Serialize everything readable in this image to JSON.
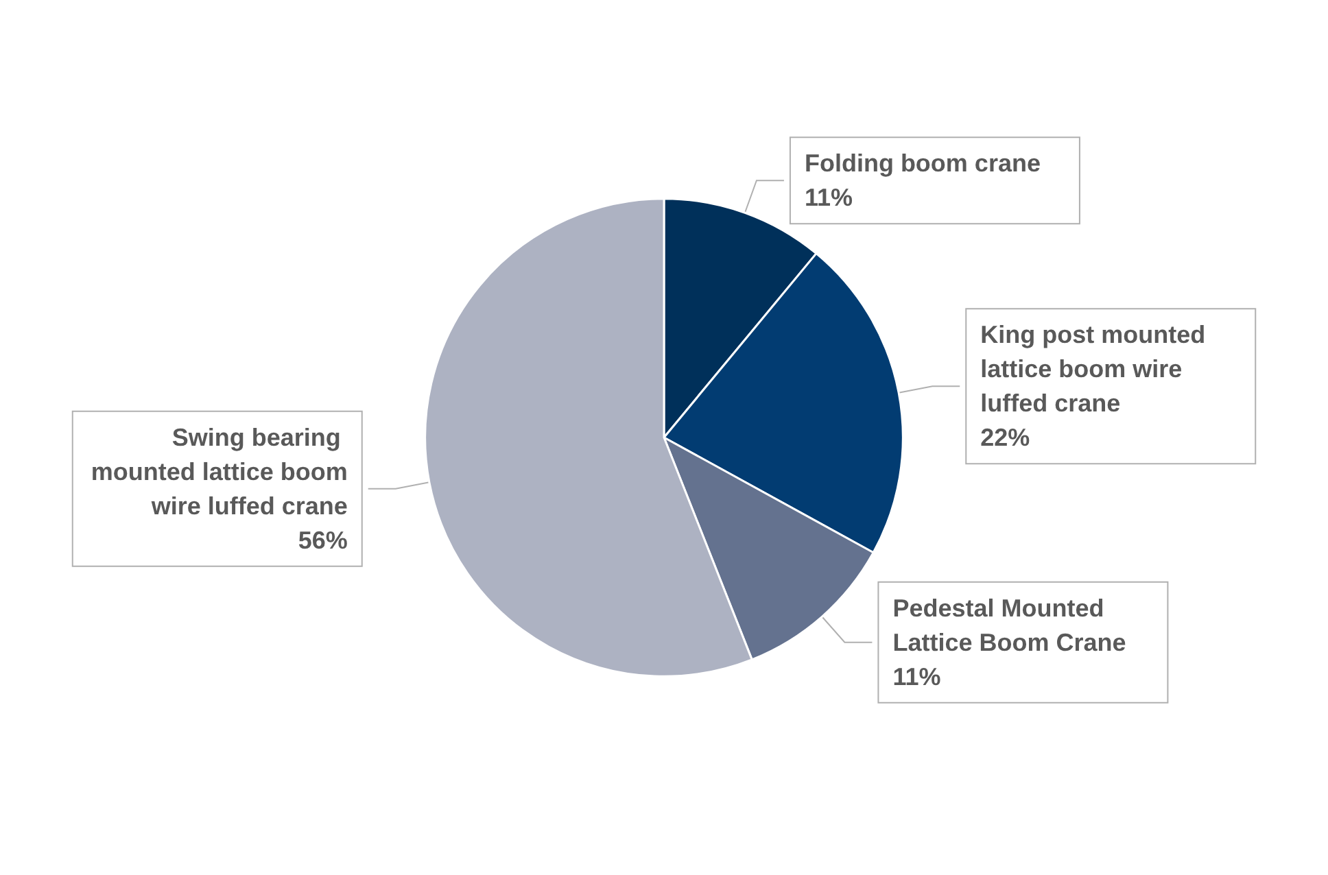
{
  "chart_data": {
    "type": "pie",
    "categories": [
      "Folding boom crane",
      "King post mounted lattice boom wire luffed crane",
      "Pedestal Mounted Lattice Boom Crane",
      "Swing bearing mounted lattice boom wire luffed crane"
    ],
    "values": [
      11,
      22,
      11,
      56
    ],
    "value_labels": [
      "11%",
      "22%",
      "11%",
      "56%"
    ],
    "colors": [
      "#00305a",
      "#023c72",
      "#64728f",
      "#adb2c2"
    ],
    "legend": false
  }
}
